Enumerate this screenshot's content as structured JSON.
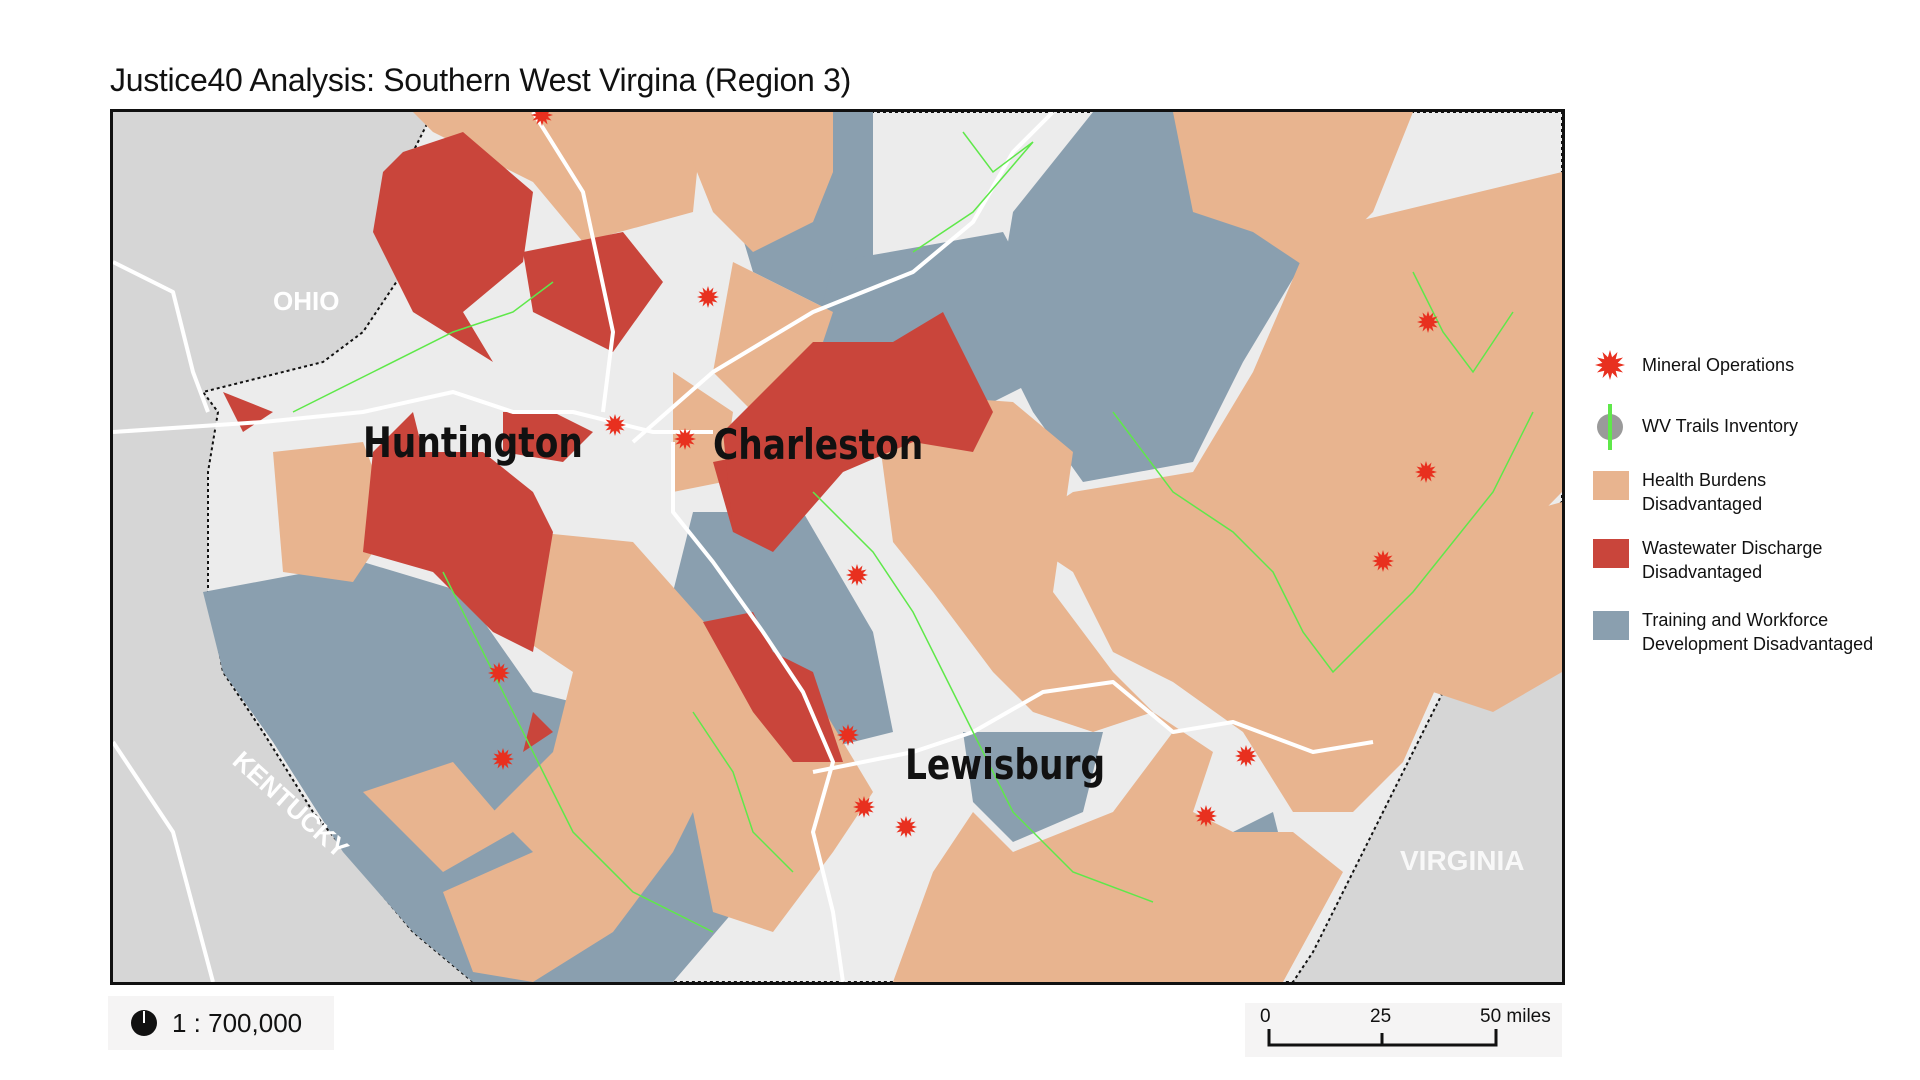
{
  "title": "Justice40 Analysis: Southern West Virgina (Region 3)",
  "map": {
    "state_labels": [
      "OHIO",
      "KENTUCKY",
      "VIRGINIA"
    ],
    "city_labels": [
      "Huntington",
      "Charleston",
      "Lewisburg"
    ],
    "colors": {
      "health_burdens": "#e8b48f",
      "wastewater": "#c9453b",
      "training": "#8a9faf",
      "trails": "#5fe84a",
      "mineral": "#e8301f",
      "roads": "#ffffff",
      "outside": "#d9d9d9"
    }
  },
  "legend": {
    "items": [
      {
        "label": "Mineral Operations",
        "icon": "red-starburst"
      },
      {
        "label": "WV Trails Inventory",
        "icon": "green-line-gray-dot"
      },
      {
        "label": "Health Burdens",
        "label2": "Disadvantaged",
        "color": "#e8b48f"
      },
      {
        "label": "Wastewater Discharge",
        "label2": "Disadvantaged",
        "color": "#c9453b"
      },
      {
        "label": "Training and Workforce",
        "label2": "Development Disadvantaged",
        "color": "#8a9faf"
      }
    ]
  },
  "scale": {
    "ratio": "1 : 700,000",
    "icon": "pie-scale-icon",
    "bar_labels": [
      "0",
      "25",
      "50 miles"
    ]
  }
}
